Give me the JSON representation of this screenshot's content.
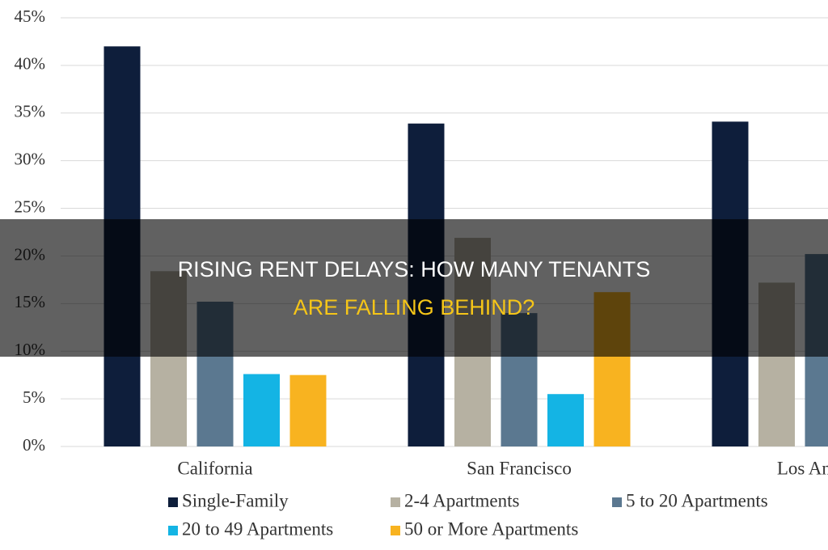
{
  "chart_data": {
    "type": "bar",
    "title": [
      "RISING RENT DELAYS: HOW MANY TENANTS",
      "ARE FALLING BEHIND?"
    ],
    "categories": [
      "California",
      "San Francisco",
      "Los Angeles"
    ],
    "series": [
      {
        "name": "Single-Family",
        "color": "#0e1e3b",
        "values": [
          42,
          33.9,
          34.1
        ]
      },
      {
        "name": "2-4 Apartments",
        "color": "#b6b1a2",
        "values": [
          18.4,
          21.9,
          17.2
        ]
      },
      {
        "name": "5 to 20 Apartments",
        "color": "#5b7890",
        "values": [
          15.2,
          14,
          20.2
        ]
      },
      {
        "name": "20 to 49 Apartments",
        "color": "#14b4e4",
        "values": [
          7.6,
          5.5,
          null
        ]
      },
      {
        "name": "50 or More Apartments",
        "color": "#f8b320",
        "values": [
          7.5,
          16.2,
          null
        ]
      }
    ],
    "ylim": [
      0,
      45
    ],
    "yticks": [
      {
        "value": 0,
        "label": "0%"
      },
      {
        "value": 5,
        "label": "5%"
      },
      {
        "value": 10,
        "label": "10%"
      },
      {
        "value": 15,
        "label": "15%"
      },
      {
        "value": 20,
        "label": "20%"
      },
      {
        "value": 25,
        "label": "25%"
      },
      {
        "value": 30,
        "label": "30%"
      },
      {
        "value": 35,
        "label": "35%"
      },
      {
        "value": 40,
        "label": "40%"
      },
      {
        "value": 45,
        "label": "45%"
      }
    ],
    "grid": true
  }
}
